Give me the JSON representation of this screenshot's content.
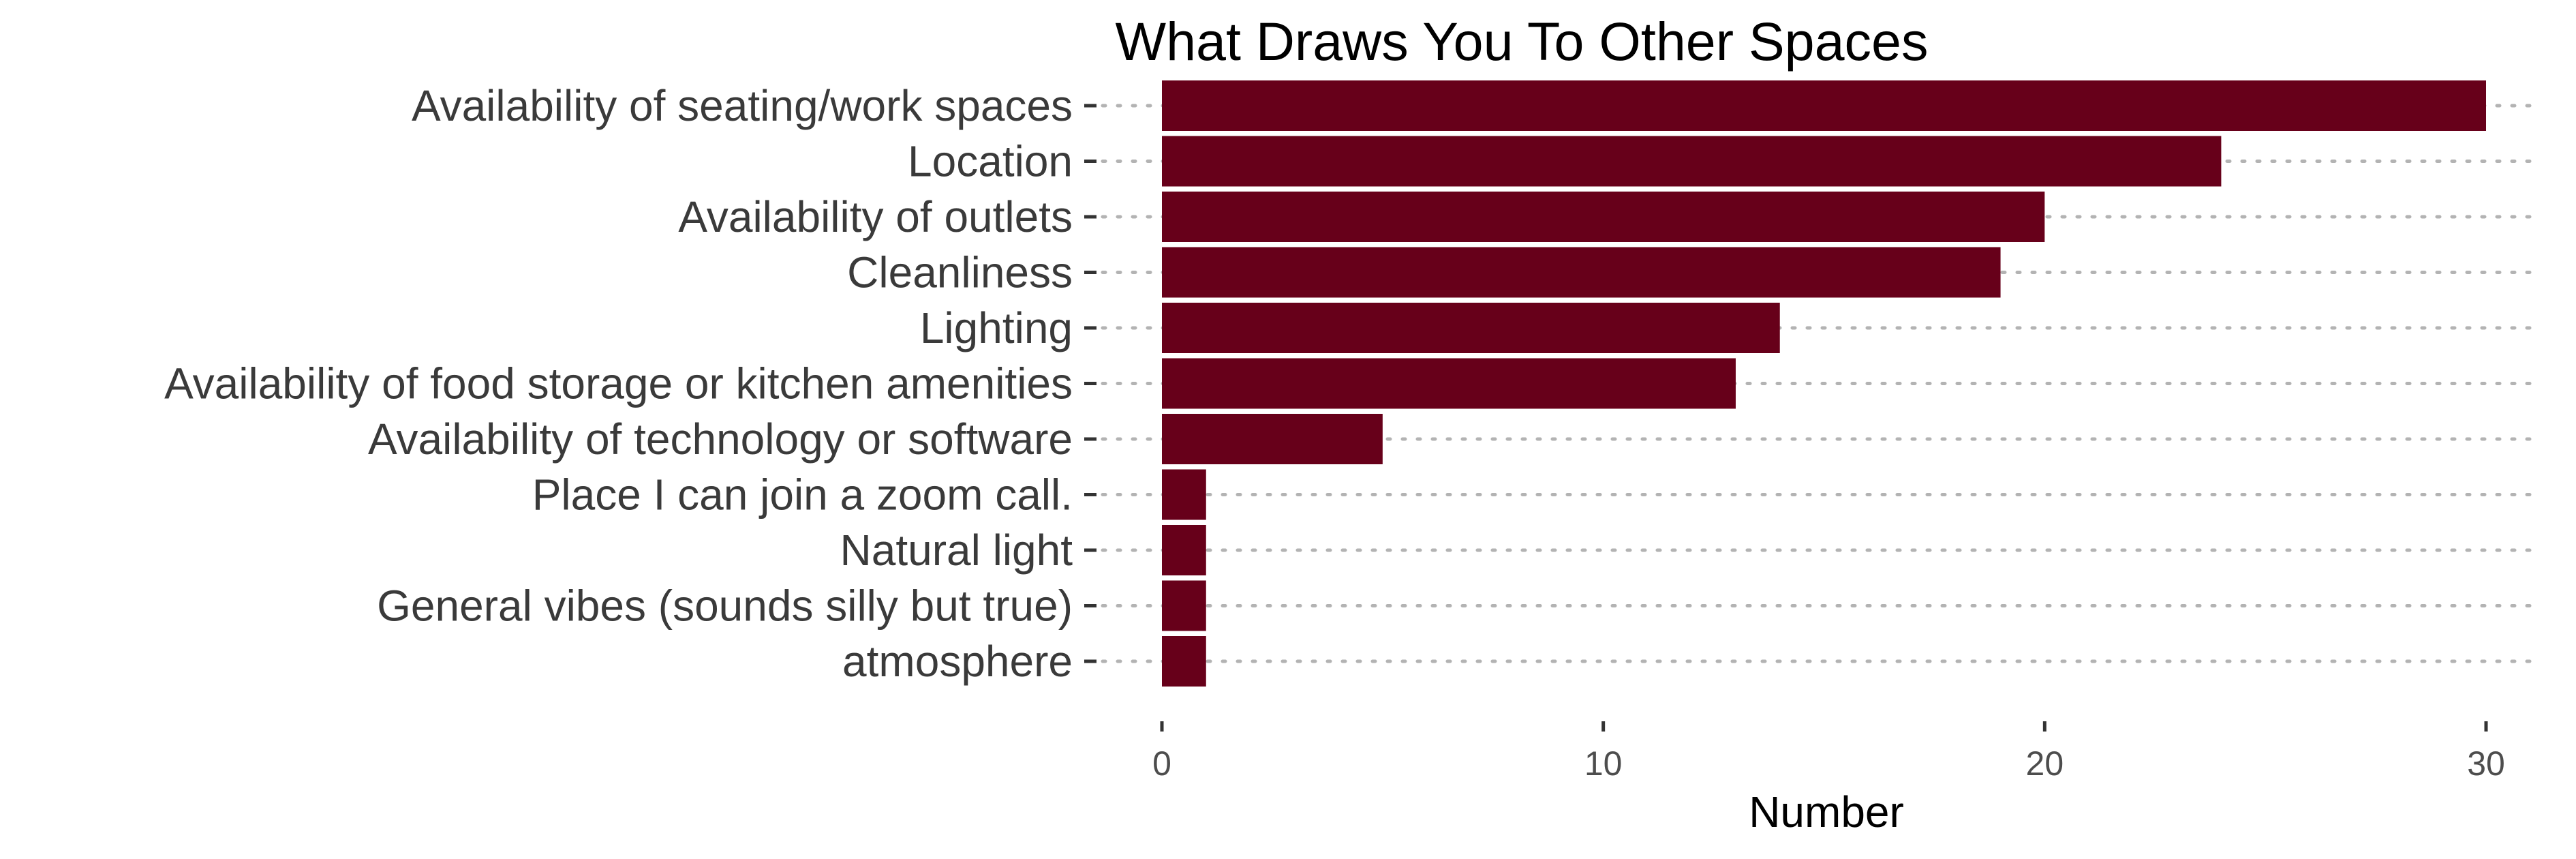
{
  "chart_data": {
    "type": "bar",
    "orientation": "horizontal",
    "title": "What Draws You To Other Spaces",
    "xlabel": "Number",
    "ylabel": "",
    "categories": [
      "Availability of seating/work spaces",
      "Location",
      "Availability of outlets",
      "Cleanliness",
      "Lighting",
      "Availability of food storage or kitchen amenities",
      "Availability of technology or software",
      "Place I can join a zoom call.",
      "Natural light",
      "General vibes (sounds silly but true)",
      "atmosphere"
    ],
    "values": [
      30,
      24,
      20,
      19,
      14,
      13,
      5,
      1,
      1,
      1,
      1
    ],
    "xlim": [
      0,
      30
    ],
    "x_ticks": [
      "0",
      "10",
      "20",
      "30"
    ],
    "bar_color": "#67001a",
    "grid": "dotted horizontal",
    "legend": "none"
  }
}
